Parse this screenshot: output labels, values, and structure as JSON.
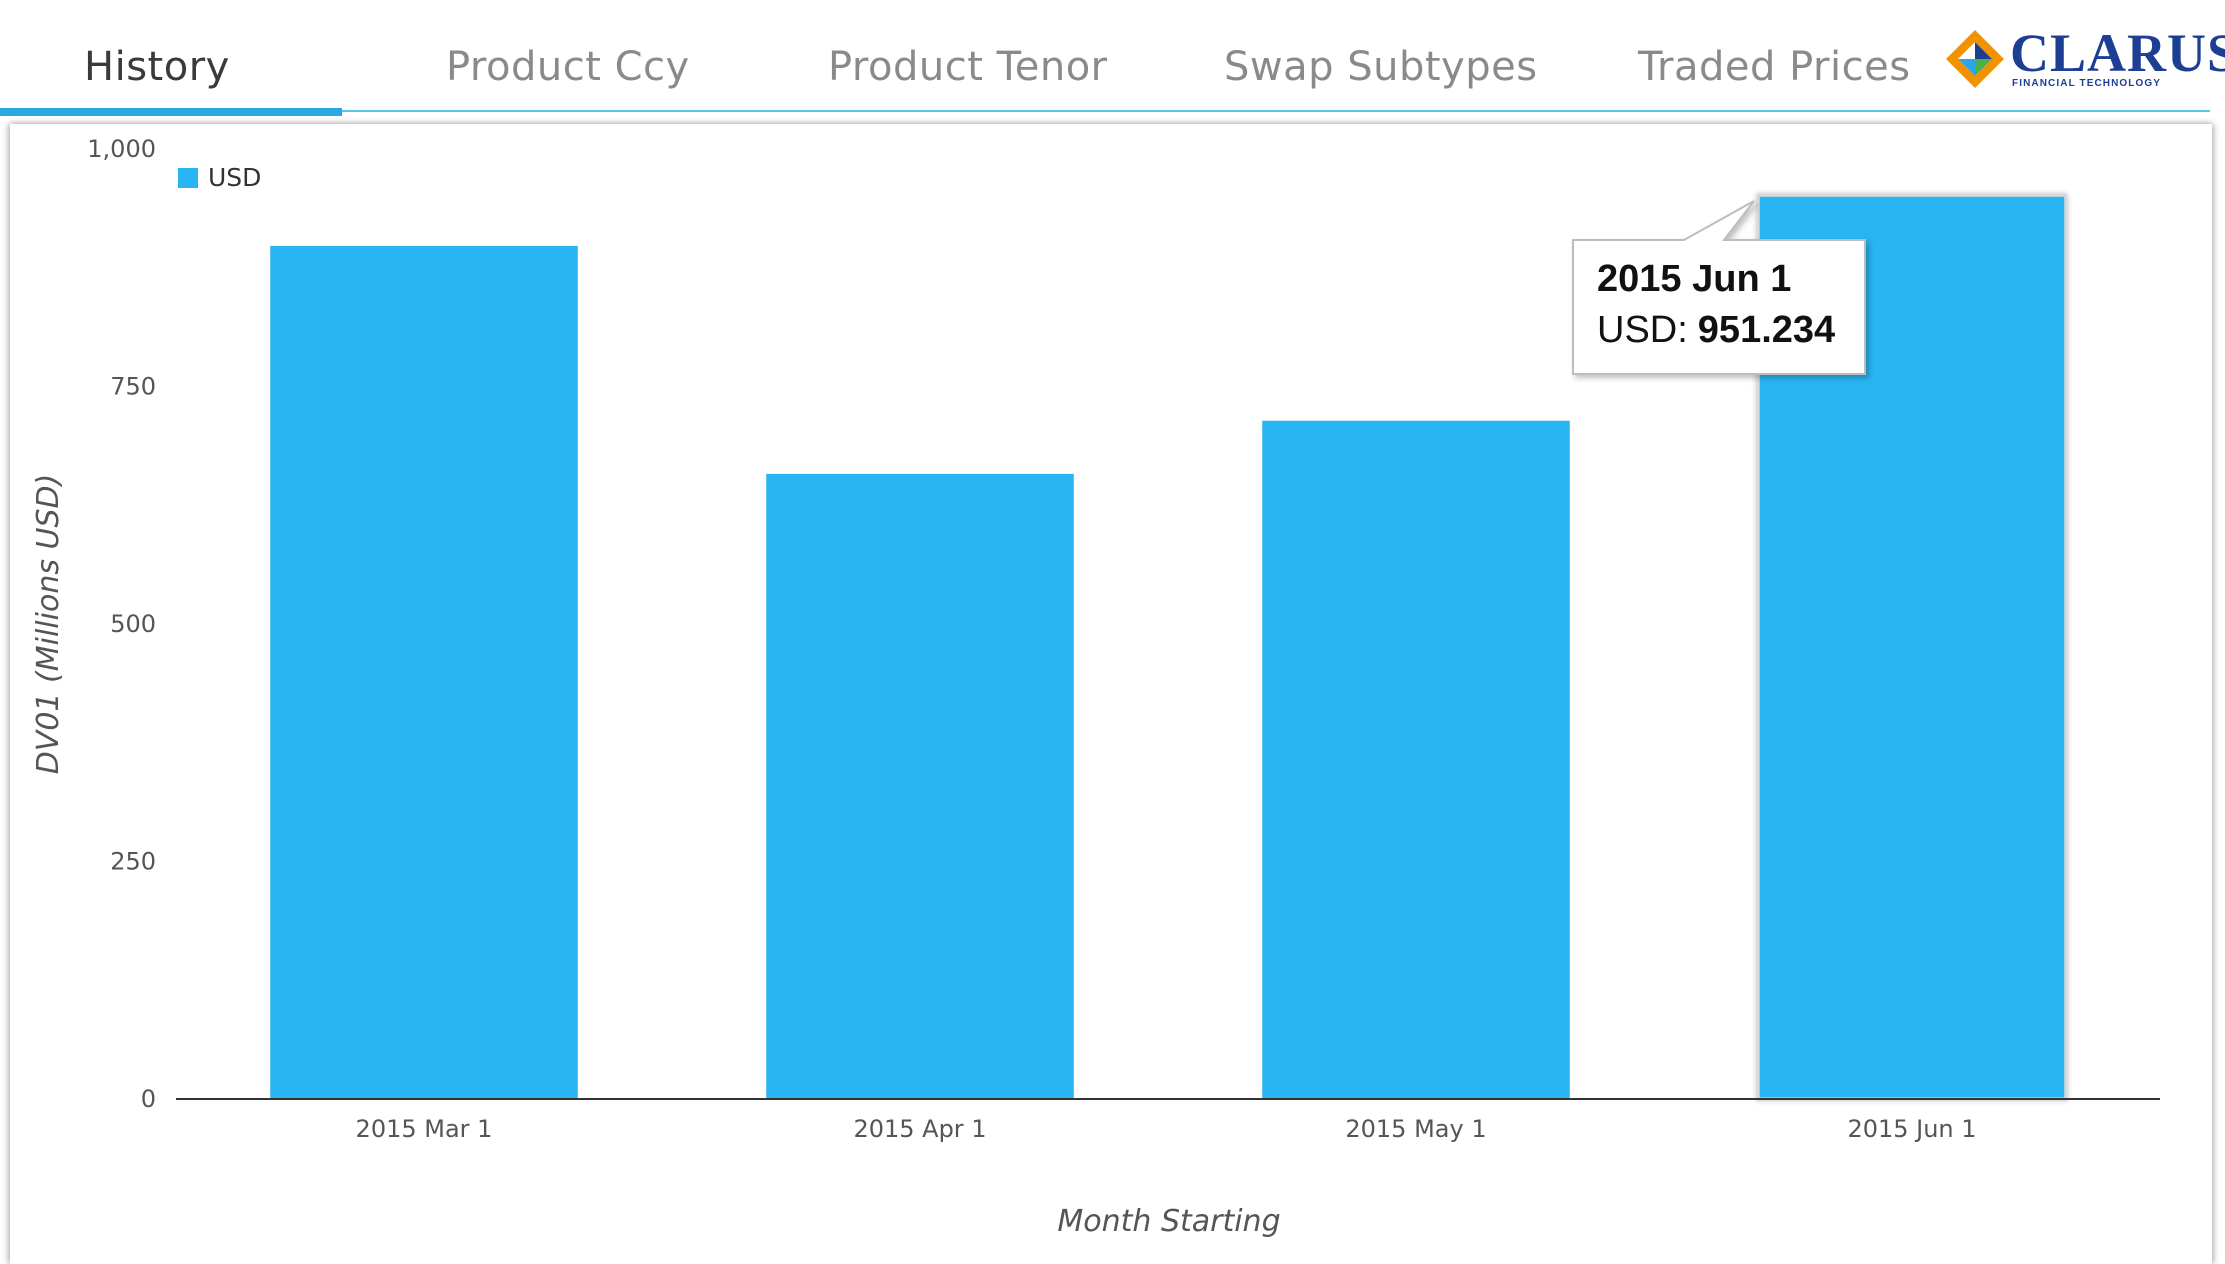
{
  "tabs": [
    {
      "label": "History",
      "active": true
    },
    {
      "label": "Product Ccy",
      "active": false
    },
    {
      "label": "Product Tenor",
      "active": false
    },
    {
      "label": "Swap Subtypes",
      "active": false
    },
    {
      "label": "Traded Prices",
      "active": false
    }
  ],
  "logo": {
    "name": "CLARUS",
    "tagline": "FINANCIAL TECHNOLOGY"
  },
  "colors": {
    "accent": "#2aa8e6",
    "bar": "#29b5f3",
    "logo_blue": "#1c3f94",
    "logo_orange": "#f39200"
  },
  "chart_data": {
    "type": "bar",
    "categories": [
      "2015 Mar 1",
      "2015 Apr 1",
      "2015 May 1",
      "2015 Jun 1"
    ],
    "series": [
      {
        "name": "USD",
        "color": "#29b5f3",
        "values": [
          898,
          658,
          714,
          951.234
        ]
      }
    ],
    "ylabel": "DV01 (Millions USD)",
    "xlabel": "Month Starting",
    "ylim": [
      0,
      1000
    ],
    "yticks": [
      0,
      250,
      500,
      750,
      1000
    ],
    "ytick_labels": [
      "0",
      "250",
      "500",
      "750",
      "1,000"
    ],
    "grid": false,
    "legend": "top-left",
    "tooltip": {
      "title": "2015 Jun 1",
      "series_label": "USD:",
      "value": "951.234",
      "category_index": 3
    }
  }
}
